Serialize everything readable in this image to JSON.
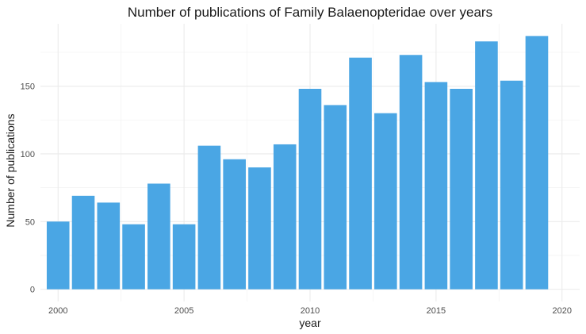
{
  "chart_data": {
    "type": "bar",
    "title": "Number of publications of Family Balaenopteridae over years",
    "xlabel": "year",
    "ylabel": "Number of publications",
    "x": [
      2000,
      2001,
      2002,
      2003,
      2004,
      2005,
      2006,
      2007,
      2008,
      2009,
      2010,
      2011,
      2012,
      2013,
      2014,
      2015,
      2016,
      2017,
      2018,
      2019
    ],
    "values": [
      50,
      69,
      64,
      48,
      78,
      48,
      106,
      96,
      90,
      107,
      148,
      136,
      171,
      130,
      173,
      153,
      148,
      183,
      154,
      187
    ],
    "xticks": [
      2000,
      2005,
      2010,
      2015,
      2020
    ],
    "yticks": [
      0,
      50,
      100,
      150
    ],
    "xlim": [
      1999.3,
      2020.7
    ],
    "ylim": [
      -9,
      196
    ],
    "grid": true,
    "bar_color": "#4aa6e4",
    "background": "#ffffff"
  }
}
